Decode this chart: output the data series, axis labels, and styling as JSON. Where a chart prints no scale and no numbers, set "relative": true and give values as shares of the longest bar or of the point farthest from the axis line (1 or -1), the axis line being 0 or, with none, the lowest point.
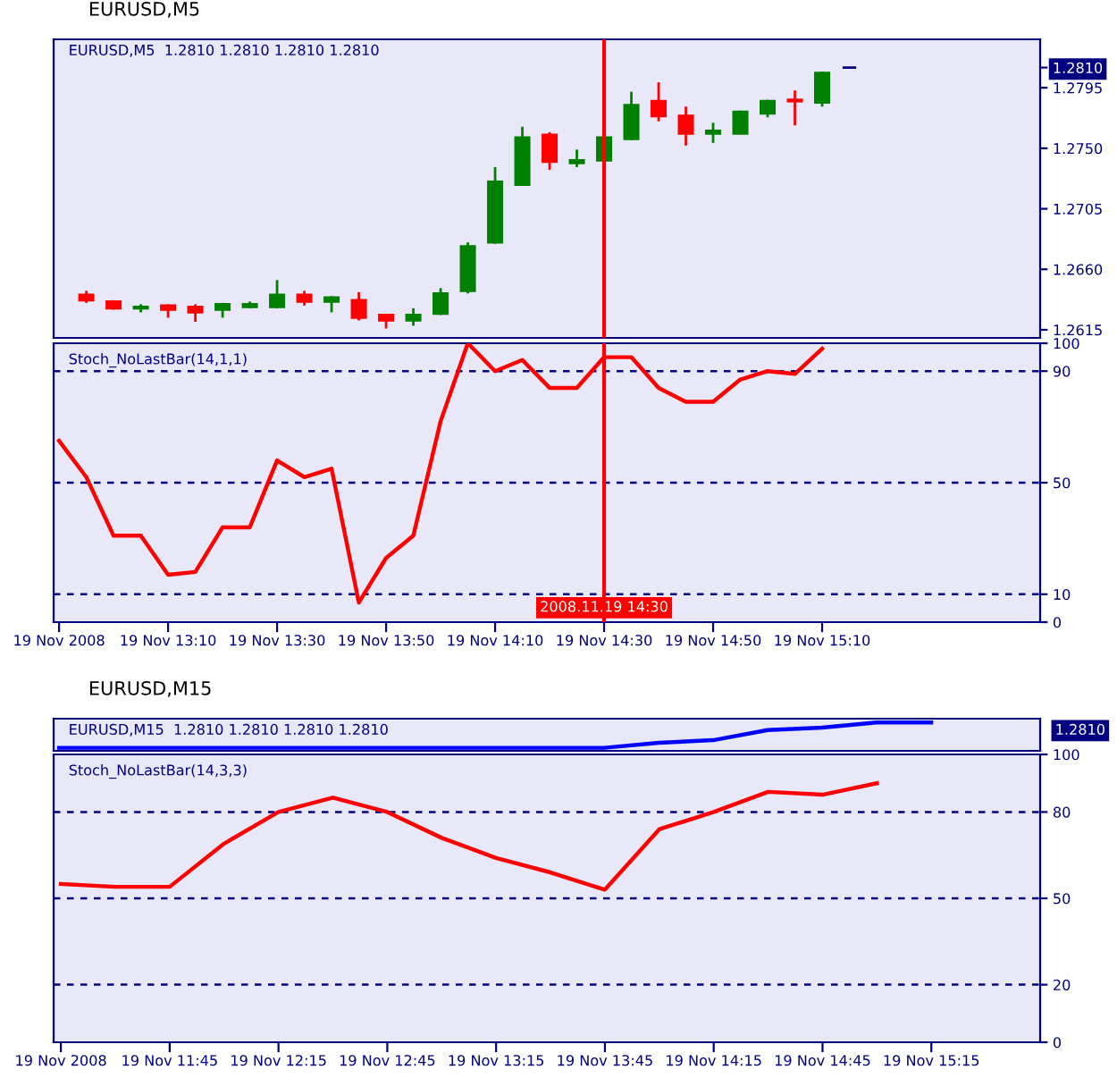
{
  "chart_data": [
    {
      "type": "candlestick",
      "title": "EURUSD,M5",
      "subtitle": "EURUSD,M5  1.2810 1.2810 1.2810 1.2810",
      "x": [
        "2008-11-19T12:55",
        "2008-11-19T13:00",
        "2008-11-19T13:05",
        "2008-11-19T13:10",
        "2008-11-19T13:15",
        "2008-11-19T13:20",
        "2008-11-19T13:25",
        "2008-11-19T13:30",
        "2008-11-19T13:35",
        "2008-11-19T13:40",
        "2008-11-19T13:45",
        "2008-11-19T13:50",
        "2008-11-19T13:55",
        "2008-11-19T14:00",
        "2008-11-19T14:05",
        "2008-11-19T14:10",
        "2008-11-19T14:15",
        "2008-11-19T14:20",
        "2008-11-19T14:25",
        "2008-11-19T14:30",
        "2008-11-19T14:35",
        "2008-11-19T14:40",
        "2008-11-19T14:45",
        "2008-11-19T14:50",
        "2008-11-19T14:55",
        "2008-11-19T15:00",
        "2008-11-19T15:05",
        "2008-11-19T15:10",
        "2008-11-19T15:15"
      ],
      "ohlc": [
        [
          1.2641,
          1.2644,
          1.2635,
          1.2637
        ],
        [
          1.2636,
          1.2637,
          1.263,
          1.2631
        ],
        [
          1.2631,
          1.2634,
          1.2628,
          1.2632
        ],
        [
          1.2633,
          1.2634,
          1.2624,
          1.263
        ],
        [
          1.2632,
          1.2634,
          1.2621,
          1.2628
        ],
        [
          1.263,
          1.2635,
          1.2624,
          1.2634
        ],
        [
          1.2632,
          1.2636,
          1.2631,
          1.2634
        ],
        [
          1.2632,
          1.2652,
          1.2631,
          1.2641
        ],
        [
          1.2641,
          1.2644,
          1.2633,
          1.2636
        ],
        [
          1.2636,
          1.264,
          1.2628,
          1.2639
        ],
        [
          1.2637,
          1.2643,
          1.2622,
          1.2624
        ],
        [
          1.2626,
          1.2627,
          1.2616,
          1.2622
        ],
        [
          1.2622,
          1.2631,
          1.2618,
          1.2626
        ],
        [
          1.2627,
          1.2646,
          1.2626,
          1.2642
        ],
        [
          1.2644,
          1.268,
          1.2642,
          1.2677
        ],
        [
          1.268,
          1.2736,
          1.2679,
          1.2725
        ],
        [
          1.2723,
          1.2766,
          1.2722,
          1.2758
        ],
        [
          1.276,
          1.2762,
          1.2734,
          1.274
        ],
        [
          1.2739,
          1.2749,
          1.2736,
          1.2741
        ],
        [
          1.2741,
          1.2759,
          1.274,
          1.2758
        ],
        [
          1.2757,
          1.2792,
          1.2756,
          1.2782
        ],
        [
          1.2785,
          1.2799,
          1.277,
          1.2774
        ],
        [
          1.2774,
          1.2781,
          1.2752,
          1.2761
        ],
        [
          1.2761,
          1.2769,
          1.2754,
          1.2763
        ],
        [
          1.2761,
          1.2778,
          1.2761,
          1.2777
        ],
        [
          1.2776,
          1.2786,
          1.2773,
          1.2785
        ],
        [
          1.2786,
          1.2793,
          1.2767,
          1.2785
        ],
        [
          1.2784,
          1.2807,
          1.2781,
          1.2806
        ],
        [
          1.281,
          1.281,
          1.281,
          1.281
        ]
      ],
      "colors": [
        "#ff0000",
        "#ff0000",
        "#008000",
        "#ff0000",
        "#ff0000",
        "#008000",
        "#008000",
        "#008000",
        "#ff0000",
        "#008000",
        "#ff0000",
        "#ff0000",
        "#008000",
        "#008000",
        "#008000",
        "#008000",
        "#008000",
        "#ff0000",
        "#008000",
        "#008000",
        "#008000",
        "#ff0000",
        "#ff0000",
        "#008000",
        "#008000",
        "#008000",
        "#ff0000",
        "#008000",
        "#000080"
      ],
      "xlim": [
        "2008-11-19T12:49",
        "2008-11-19T15:50"
      ],
      "ylim": [
        1.2609,
        1.2831
      ],
      "yticks": [
        {
          "value": 1.2615,
          "label": "1.2615"
        },
        {
          "value": 1.266,
          "label": "1.2660"
        },
        {
          "value": 1.2705,
          "label": "1.2705"
        },
        {
          "value": 1.275,
          "label": "1.2750"
        },
        {
          "value": 1.2795,
          "label": "1.2795"
        },
        {
          "value": 1.281,
          "label": "1.2810"
        }
      ],
      "ref_lines": [
        {
          "axis": "x",
          "value": "2008-11-19T14:30",
          "color": "#ff0000"
        }
      ],
      "tick_labels": "y",
      "grid": false
    },
    {
      "type": "line",
      "title": "Stoch_NoLastBar(14,1,1)",
      "x": [
        "2008-11-19T12:50",
        "2008-11-19T12:55",
        "2008-11-19T13:00",
        "2008-11-19T13:05",
        "2008-11-19T13:10",
        "2008-11-19T13:15",
        "2008-11-19T13:20",
        "2008-11-19T13:25",
        "2008-11-19T13:30",
        "2008-11-19T13:35",
        "2008-11-19T13:40",
        "2008-11-19T13:45",
        "2008-11-19T13:50",
        "2008-11-19T13:55",
        "2008-11-19T14:00",
        "2008-11-19T14:05",
        "2008-11-19T14:10",
        "2008-11-19T14:15",
        "2008-11-19T14:20",
        "2008-11-19T14:25",
        "2008-11-19T14:30",
        "2008-11-19T14:35",
        "2008-11-19T14:40",
        "2008-11-19T14:45",
        "2008-11-19T14:50",
        "2008-11-19T14:55",
        "2008-11-19T15:00",
        "2008-11-19T15:05",
        "2008-11-19T15:10"
      ],
      "series": [
        {
          "color": "#ff0000",
          "values": [
            65,
            52,
            31,
            31,
            17,
            18,
            34,
            34,
            58,
            52,
            55,
            7,
            23,
            31,
            72,
            100,
            90,
            94,
            84,
            84,
            95,
            95,
            84,
            79,
            79,
            87,
            90,
            89,
            98
          ]
        }
      ],
      "xlim": [
        "2008-11-19T12:49",
        "2008-11-19T15:50"
      ],
      "xticks": [
        {
          "value": "2008-11-19T12:50",
          "label": "19 Nov 2008"
        },
        {
          "value": "2008-11-19T13:10",
          "label": "19 Nov 13:10"
        },
        {
          "value": "2008-11-19T13:30",
          "label": "19 Nov 13:30"
        },
        {
          "value": "2008-11-19T13:50",
          "label": "19 Nov 13:50"
        },
        {
          "value": "2008-11-19T14:10",
          "label": "19 Nov 14:10"
        },
        {
          "value": "2008-11-19T14:30",
          "label": "19 Nov 14:30"
        },
        {
          "value": "2008-11-19T14:50",
          "label": "19 Nov 14:50"
        },
        {
          "value": "2008-11-19T15:10",
          "label": "19 Nov 15:10"
        }
      ],
      "ylim": [
        0,
        100
      ],
      "yticks": [
        0,
        10,
        50,
        90,
        100
      ],
      "ref_lines": [
        {
          "axis": "y",
          "value": 90,
          "color": "#000080",
          "line_style": "dashed"
        },
        {
          "axis": "y",
          "value": 50,
          "color": "#000080",
          "line_style": "dashed"
        },
        {
          "axis": "y",
          "value": 10,
          "color": "#000080",
          "line_style": "dashed"
        },
        {
          "axis": "x",
          "value": "2008-11-19T14:30",
          "label": "2008.11.19 14:30",
          "color": "#ff0000"
        }
      ],
      "line_style": "solid",
      "grid": false
    },
    {
      "type": "line",
      "title": "EURUSD,M15",
      "subtitle": "EURUSD,M15  1.2810 1.2810 1.2810 1.2810",
      "relative": true,
      "categories": [
        null,
        null,
        null,
        null,
        null,
        null,
        null,
        null,
        null,
        null,
        null,
        null,
        null,
        null,
        null,
        null,
        null
      ],
      "series": [
        {
          "color": "#0000ff",
          "values": [
            0,
            0,
            0,
            0,
            0,
            0,
            0,
            0,
            0,
            0,
            0,
            0.2,
            0.3,
            0.7,
            0.8,
            1,
            1
          ]
        }
      ],
      "annotations": [
        "1.2810"
      ],
      "tick_labels": false,
      "line_style": "solid",
      "grid": false
    },
    {
      "type": "line",
      "title": "Stoch_NoLastBar(14,3,3)",
      "x": [
        "2008-11-19T11:15",
        "2008-11-19T11:30",
        "2008-11-19T11:45",
        "2008-11-19T12:00",
        "2008-11-19T12:15",
        "2008-11-19T12:30",
        "2008-11-19T12:45",
        "2008-11-19T13:00",
        "2008-11-19T13:15",
        "2008-11-19T13:30",
        "2008-11-19T13:45",
        "2008-11-19T14:00",
        "2008-11-19T14:15",
        "2008-11-19T14:30",
        "2008-11-19T14:45",
        "2008-11-19T15:00"
      ],
      "series": [
        {
          "color": "#ff0000",
          "values": [
            55,
            54,
            54,
            69,
            80,
            85,
            80,
            71,
            64,
            59,
            53,
            74,
            80,
            87,
            86,
            90
          ]
        }
      ],
      "xlim": [
        "2008-11-19T11:13",
        "2008-11-19T15:45"
      ],
      "xticks": [
        {
          "value": "2008-11-19T11:15",
          "label": "19 Nov 2008"
        },
        {
          "value": "2008-11-19T11:45",
          "label": "19 Nov 11:45"
        },
        {
          "value": "2008-11-19T12:15",
          "label": "19 Nov 12:15"
        },
        {
          "value": "2008-11-19T12:45",
          "label": "19 Nov 12:45"
        },
        {
          "value": "2008-11-19T13:15",
          "label": "19 Nov 13:15"
        },
        {
          "value": "2008-11-19T13:45",
          "label": "19 Nov 13:45"
        },
        {
          "value": "2008-11-19T14:15",
          "label": "19 Nov 14:15"
        },
        {
          "value": "2008-11-19T14:45",
          "label": "19 Nov 14:45"
        },
        {
          "value": "2008-11-19T15:15",
          "label": "19 Nov 15:15"
        }
      ],
      "ylim": [
        0,
        100
      ],
      "yticks": [
        0,
        20,
        50,
        80,
        100
      ],
      "ref_lines": [
        {
          "axis": "y",
          "value": 80,
          "color": "#000080",
          "line_style": "dashed"
        },
        {
          "axis": "y",
          "value": 50,
          "color": "#000080",
          "line_style": "dashed"
        },
        {
          "axis": "y",
          "value": 20,
          "color": "#000080",
          "line_style": "dashed"
        }
      ],
      "line_style": "solid",
      "grid": false
    }
  ]
}
